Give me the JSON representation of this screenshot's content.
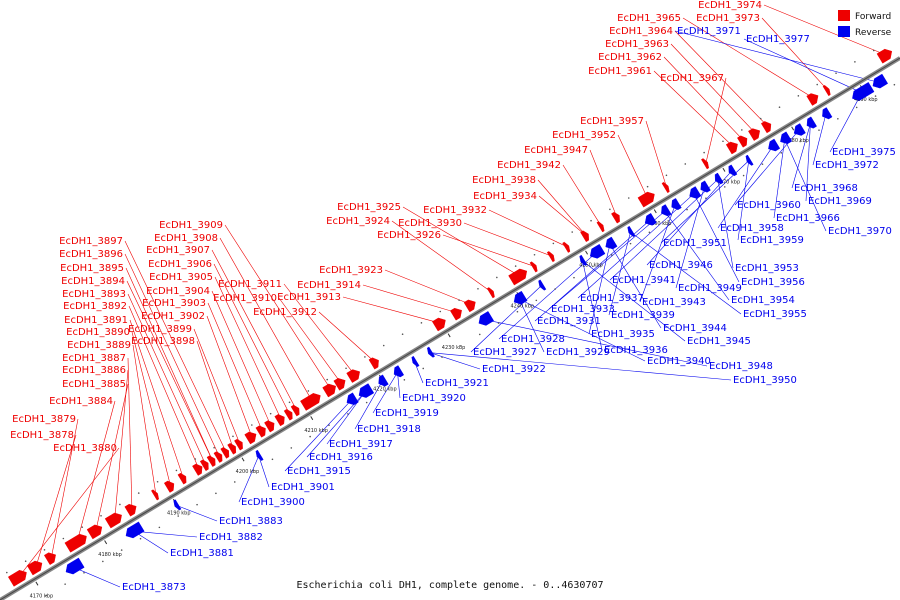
{
  "caption": "Escherichia coli DH1, complete genome. - 0..4630707",
  "legend": [
    {
      "label": "Forward",
      "color": "#ee0000"
    },
    {
      "label": "Reverse",
      "color": "#0000ee"
    }
  ],
  "colors": {
    "forward": "#ee0000",
    "reverse": "#0000ee",
    "axis": "#888888"
  },
  "ticks": [
    {
      "label": "4170 kbp",
      "pos": 4170
    },
    {
      "label": "4180 kbp",
      "pos": 4180
    },
    {
      "label": "4190 kbp",
      "pos": 4190
    },
    {
      "label": "4200 kbp",
      "pos": 4200
    },
    {
      "label": "4210 kbp",
      "pos": 4210
    },
    {
      "label": "4220 kbp",
      "pos": 4220
    },
    {
      "label": "4230 kbp",
      "pos": 4230
    },
    {
      "label": "4240 kbp",
      "pos": 4240
    },
    {
      "label": "4250 kbp",
      "pos": 4250
    },
    {
      "label": "4260 kbp",
      "pos": 4260
    },
    {
      "label": "4270 kbp",
      "pos": 4270
    },
    {
      "label": "4280 kbp",
      "pos": 4280
    },
    {
      "label": "4290 kbp",
      "pos": 4290
    }
  ],
  "forward_labels": [
    "EcDH1_3974",
    "EcDH1_3973",
    "EcDH1_3965",
    "EcDH1_3964",
    "EcDH1_3963",
    "EcDH1_3962",
    "EcDH1_3961",
    "EcDH1_3967",
    "EcDH1_3957",
    "EcDH1_3952",
    "EcDH1_3947",
    "EcDH1_3942",
    "EcDH1_3938",
    "EcDH1_3934",
    "EcDH1_3932",
    "EcDH1_3930",
    "EcDH1_3926",
    "EcDH1_3925",
    "EcDH1_3924",
    "EcDH1_3923",
    "EcDH1_3914",
    "EcDH1_3913",
    "EcDH1_3912",
    "EcDH1_3911",
    "EcDH1_3910",
    "EcDH1_3909",
    "EcDH1_3908",
    "EcDH1_3907",
    "EcDH1_3906",
    "EcDH1_3905",
    "EcDH1_3904",
    "EcDH1_3903",
    "EcDH1_3902",
    "EcDH1_3899",
    "EcDH1_3898",
    "EcDH1_3897",
    "EcDH1_3896",
    "EcDH1_3895",
    "EcDH1_3894",
    "EcDH1_3893",
    "EcDH1_3892",
    "EcDH1_3891",
    "EcDH1_3890",
    "EcDH1_3889",
    "EcDH1_3887",
    "EcDH1_3886",
    "EcDH1_3885",
    "EcDH1_3884",
    "EcDH1_3879",
    "EcDH1_3878",
    "EcDH1_3880"
  ],
  "reverse_labels": [
    "EcDH1_3971",
    "EcDH1_3977",
    "EcDH1_3975",
    "EcDH1_3972",
    "EcDH1_3968",
    "EcDH1_3969",
    "EcDH1_3960",
    "EcDH1_3966",
    "EcDH1_3970",
    "EcDH1_3958",
    "EcDH1_3959",
    "EcDH1_3951",
    "EcDH1_3946",
    "EcDH1_3953",
    "EcDH1_3941",
    "EcDH1_3949",
    "EcDH1_3956",
    "EcDH1_3937",
    "EcDH1_3943",
    "EcDH1_3954",
    "EcDH1_3931",
    "EcDH1_3933",
    "EcDH1_3939",
    "EcDH1_3955",
    "EcDH1_3935",
    "EcDH1_3944",
    "EcDH1_3928",
    "EcDH1_3936",
    "EcDH1_3945",
    "EcDH1_3927",
    "EcDH1_3929",
    "EcDH1_3940",
    "EcDH1_3948",
    "EcDH1_3922",
    "EcDH1_3950",
    "EcDH1_3921",
    "EcDH1_3920",
    "EcDH1_3919",
    "EcDH1_3918",
    "EcDH1_3917",
    "EcDH1_3916",
    "EcDH1_3915",
    "EcDH1_3901",
    "EcDH1_3900",
    "EcDH1_3883",
    "EcDH1_3882",
    "EcDH1_3881",
    "EcDH1_3873"
  ]
}
